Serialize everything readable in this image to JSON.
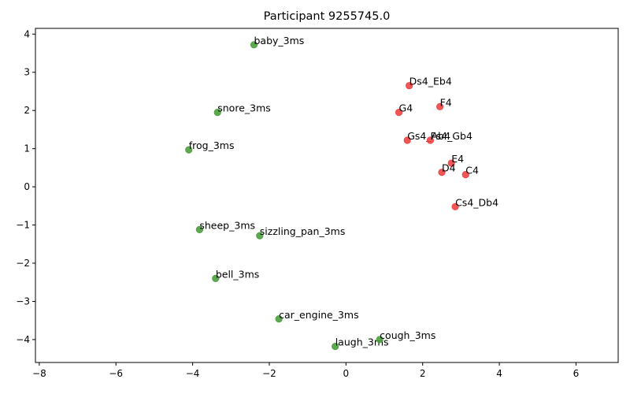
{
  "chart_data": {
    "type": "scatter",
    "title": "Participant 9255745.0",
    "xlabel": "",
    "ylabel": "",
    "xlim": [
      -8.1,
      7.1
    ],
    "ylim": [
      -4.6,
      4.15
    ],
    "xticks": [
      -8,
      -6,
      -4,
      -2,
      0,
      2,
      4,
      6
    ],
    "yticks": [
      -4,
      -3,
      -2,
      -1,
      0,
      1,
      2,
      3,
      4
    ],
    "grid": false,
    "legend": "none",
    "series": [
      {
        "color": "#4c9f3f",
        "points": [
          {
            "label": "baby_3ms",
            "x": -2.4,
            "y": 3.72
          },
          {
            "label": "snore_3ms",
            "x": -3.35,
            "y": 1.95
          },
          {
            "label": "frog_3ms",
            "x": -4.1,
            "y": 0.97
          },
          {
            "label": "sheep_3ms",
            "x": -3.82,
            "y": -1.12
          },
          {
            "label": "sizzling_pan_3ms",
            "x": -2.25,
            "y": -1.28
          },
          {
            "label": "bell_3ms",
            "x": -3.4,
            "y": -2.4
          },
          {
            "label": "car_engine_3ms",
            "x": -1.75,
            "y": -3.46
          },
          {
            "label": "laugh_3ms",
            "x": -0.28,
            "y": -4.18
          },
          {
            "label": "cough_3ms",
            "x": 0.88,
            "y": -4.0
          }
        ]
      },
      {
        "color": "#ee4444",
        "points": [
          {
            "label": "Ds4_Eb4",
            "x": 1.65,
            "y": 2.65
          },
          {
            "label": "F4",
            "x": 2.45,
            "y": 2.1
          },
          {
            "label": "G4",
            "x": 1.38,
            "y": 1.95
          },
          {
            "label": "Gs4_Ab4",
            "x": 1.6,
            "y": 1.22
          },
          {
            "label": "Fs4_Gb4",
            "x": 2.2,
            "y": 1.22
          },
          {
            "label": "E4",
            "x": 2.75,
            "y": 0.62
          },
          {
            "label": "D4",
            "x": 2.5,
            "y": 0.38
          },
          {
            "label": "C4",
            "x": 3.12,
            "y": 0.32
          },
          {
            "label": "Cs4_Db4",
            "x": 2.85,
            "y": -0.52
          }
        ]
      }
    ]
  }
}
